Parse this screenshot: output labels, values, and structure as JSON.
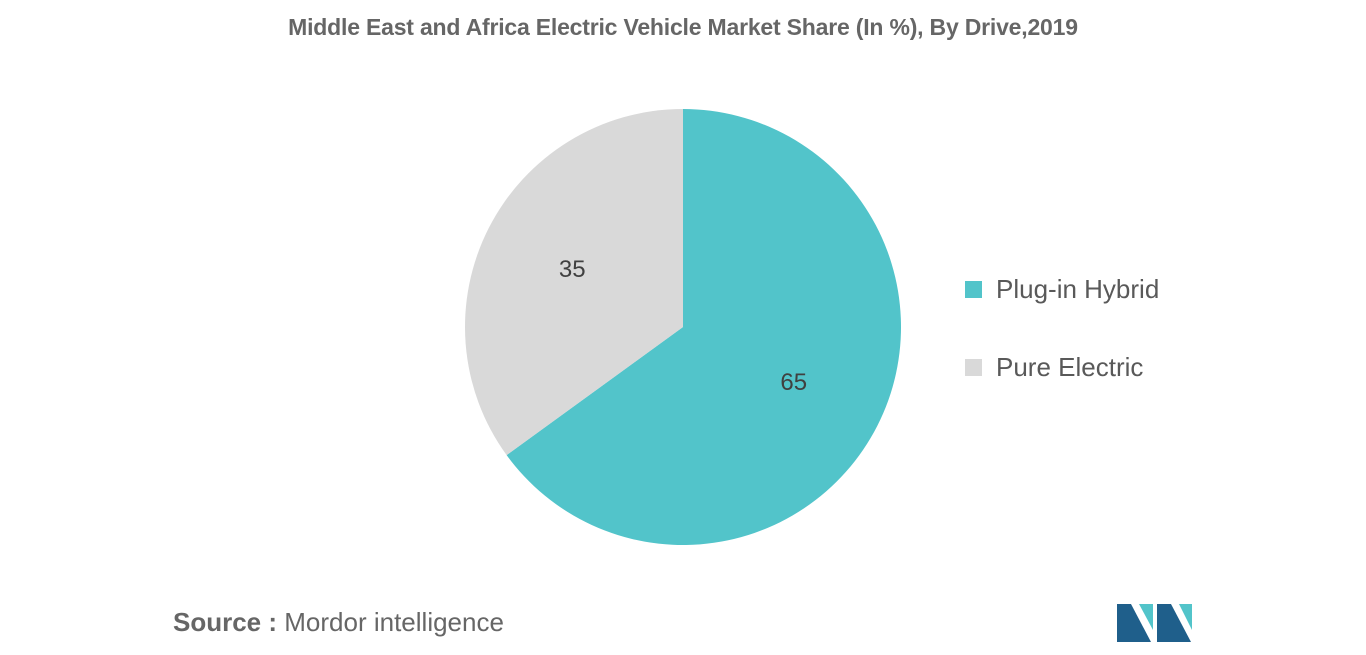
{
  "chart_data": {
    "type": "pie",
    "title": "Middle East and Africa Electric Vehicle Market Share (In %), By Drive,2019",
    "slices": [
      {
        "label": "Plug-in Hybrid",
        "value": 65,
        "display": "65",
        "color": "#52C4CA"
      },
      {
        "label": "Pure Electric",
        "value": 35,
        "display": "35",
        "color": "#D9D9D9"
      }
    ],
    "start_angle_deg": 0,
    "direction": "clockwise",
    "legend_position": "right"
  },
  "legend": {
    "items": [
      {
        "label": "Plug-in Hybrid",
        "color": "#52C4CA"
      },
      {
        "label": "Pure Electric",
        "color": "#D9D9D9"
      }
    ]
  },
  "source": {
    "key": "Source :",
    "value": "Mordor intelligence"
  },
  "logo": {
    "icon": "mordor-intelligence-logo-icon",
    "colors": [
      "#1F5F8B",
      "#52C4CA"
    ]
  }
}
